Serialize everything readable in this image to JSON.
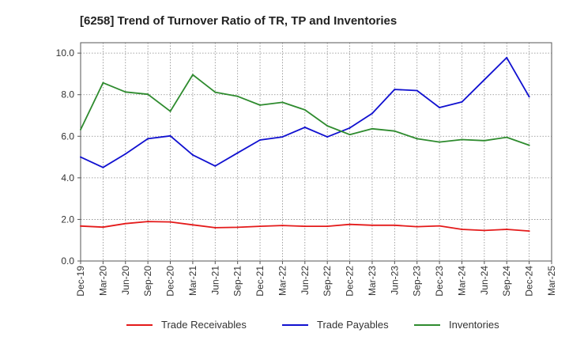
{
  "chart_data": {
    "type": "line",
    "title": "[6258]  Trend of Turnover Ratio of TR, TP and Inventories",
    "xlabel": "",
    "ylabel": "",
    "ylim": [
      0,
      10.5
    ],
    "yticks": [
      "0.0",
      "2.0",
      "4.0",
      "6.0",
      "8.0",
      "10.0"
    ],
    "ytick_values": [
      0,
      2,
      4,
      6,
      8,
      10
    ],
    "x_tick_labels": [
      "Dec-19",
      "Mar-20",
      "Jun-20",
      "Sep-20",
      "Dec-20",
      "Mar-21",
      "Jun-21",
      "Sep-21",
      "Dec-21",
      "Mar-22",
      "Jun-22",
      "Sep-22",
      "Dec-22",
      "Mar-23",
      "Jun-23",
      "Sep-23",
      "Dec-23",
      "Mar-24",
      "Jun-24",
      "Sep-24",
      "Dec-24",
      "Mar-25"
    ],
    "grid": true,
    "legend_position": "bottom",
    "categories": [
      "Dec-19",
      "Mar-20",
      "Jun-20",
      "Sep-20",
      "Dec-20",
      "Mar-21",
      "Jun-21",
      "Sep-21",
      "Dec-21",
      "Mar-22",
      "Jun-22",
      "Sep-22",
      "Dec-22",
      "Mar-23",
      "Jun-23",
      "Sep-23",
      "Dec-23",
      "Mar-24",
      "Jun-24",
      "Sep-24",
      "Dec-24"
    ],
    "series": [
      {
        "name": "Trade Receivables",
        "color": "#e41a1a",
        "values": [
          1.68,
          1.63,
          1.8,
          1.9,
          1.88,
          1.74,
          1.6,
          1.62,
          1.67,
          1.71,
          1.67,
          1.67,
          1.76,
          1.72,
          1.72,
          1.65,
          1.69,
          1.52,
          1.47,
          1.52,
          1.44
        ]
      },
      {
        "name": "Trade Payables",
        "color": "#1010d0",
        "values": [
          5.0,
          4.5,
          5.15,
          5.88,
          6.02,
          5.1,
          4.57,
          5.2,
          5.82,
          5.97,
          6.43,
          5.97,
          6.4,
          7.1,
          8.25,
          8.2,
          7.38,
          7.65,
          8.72,
          9.78,
          7.9
        ]
      },
      {
        "name": "Inventories",
        "color": "#2e8b2e",
        "values": [
          6.32,
          8.57,
          8.13,
          8.02,
          7.2,
          8.96,
          8.12,
          7.92,
          7.5,
          7.63,
          7.27,
          6.5,
          6.08,
          6.36,
          6.25,
          5.88,
          5.72,
          5.84,
          5.79,
          5.95,
          5.57
        ]
      }
    ]
  }
}
